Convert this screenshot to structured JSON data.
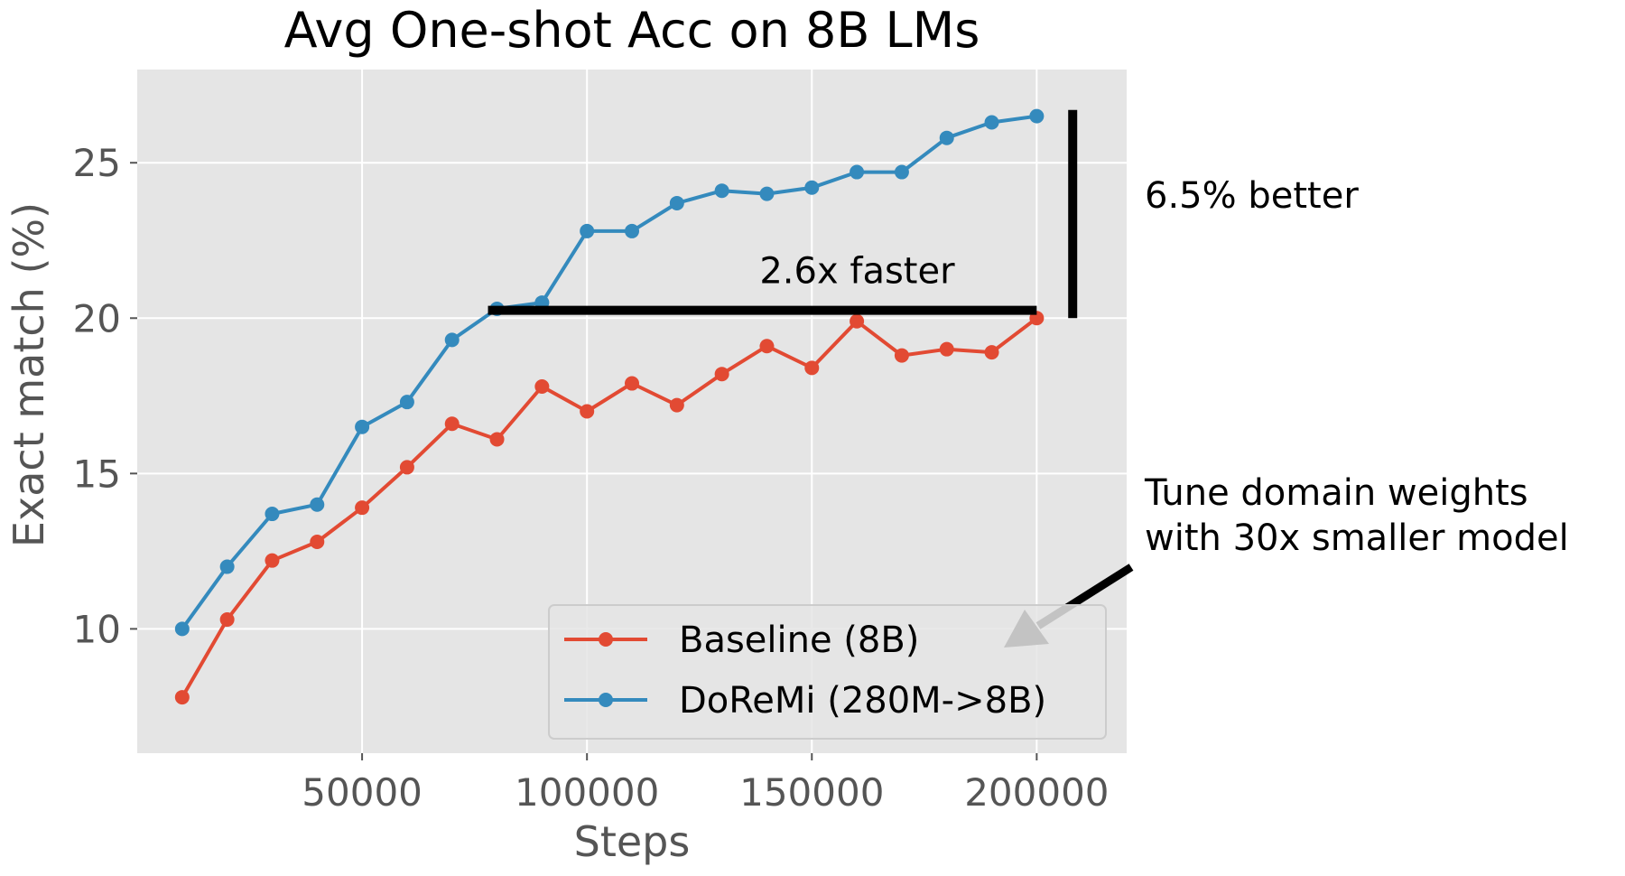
{
  "chart_data": {
    "type": "line",
    "title": "Avg One-shot Acc on 8B LMs",
    "xlabel": "Steps",
    "ylabel": "Exact match (%)",
    "xlim": [
      0,
      220000
    ],
    "ylim": [
      6,
      28
    ],
    "xticks": [
      50000,
      100000,
      150000,
      200000
    ],
    "yticks": [
      10,
      15,
      20,
      25
    ],
    "grid": true,
    "legend_position": "lower-right",
    "x": [
      10000,
      20000,
      30000,
      40000,
      50000,
      60000,
      70000,
      80000,
      90000,
      100000,
      110000,
      120000,
      130000,
      140000,
      150000,
      160000,
      170000,
      180000,
      190000,
      200000
    ],
    "series": [
      {
        "name": "Baseline (8B)",
        "color": "#E24A33",
        "values": [
          7.8,
          10.3,
          12.2,
          12.8,
          13.9,
          15.2,
          16.6,
          16.1,
          17.8,
          17.0,
          17.9,
          17.2,
          18.2,
          19.1,
          18.4,
          19.9,
          18.8,
          19.0,
          18.9,
          20.0
        ]
      },
      {
        "name": "DoReMi (280M->8B)",
        "color": "#348ABD",
        "values": [
          10.0,
          12.0,
          13.7,
          14.0,
          16.5,
          17.3,
          19.3,
          20.3,
          20.5,
          22.8,
          22.8,
          23.7,
          24.1,
          24.0,
          24.2,
          24.7,
          24.7,
          25.8,
          26.3,
          26.5
        ]
      }
    ],
    "annotations": [
      {
        "id": "faster",
        "text": "2.6x faster",
        "x_from": 80000,
        "x_to": 200000,
        "y": 20.25
      },
      {
        "id": "better",
        "text": "6.5% better",
        "x": 208000,
        "y_from": 20.0,
        "y_to": 26.7
      },
      {
        "id": "tune",
        "lines": [
          "Tune domain weights",
          "with 30x smaller model"
        ]
      }
    ]
  }
}
